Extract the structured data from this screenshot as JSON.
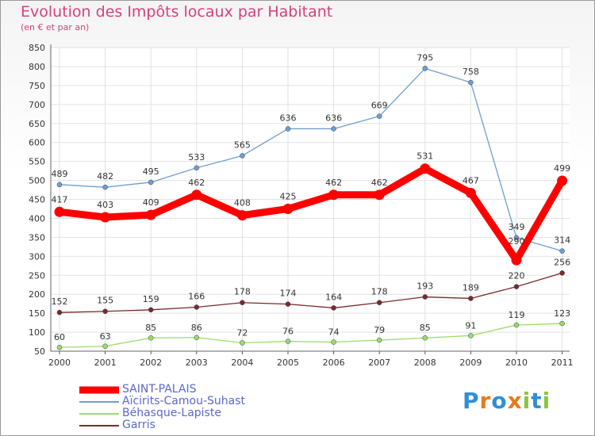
{
  "chart_data": {
    "type": "line",
    "title": "Evolution des Impôts locaux par Habitant",
    "subtitle": "(en € et par an)",
    "x": [
      "2000",
      "2001",
      "2002",
      "2003",
      "2004",
      "2005",
      "2006",
      "2007",
      "2008",
      "2009",
      "2010",
      "2011"
    ],
    "ylim": [
      50,
      850
    ],
    "yticks": [
      50,
      100,
      150,
      200,
      250,
      300,
      350,
      400,
      450,
      500,
      550,
      600,
      650,
      700,
      750,
      800,
      850
    ],
    "grid": true,
    "legend_placement": "bottom-left",
    "series": [
      {
        "name": "SAINT-PALAIS",
        "color": "#ff0000",
        "values": [
          417,
          403,
          409,
          462,
          408,
          425,
          462,
          462,
          531,
          467,
          290,
          499
        ]
      },
      {
        "name": "Aïcirits-Camou-Suhast",
        "color": "#6f9fcf",
        "values": [
          489,
          482,
          495,
          533,
          565,
          636,
          636,
          669,
          795,
          758,
          349,
          314
        ]
      },
      {
        "name": "Béhasque-Lapiste",
        "color": "#99dd66",
        "values": [
          60,
          63,
          85,
          86,
          72,
          76,
          74,
          79,
          85,
          91,
          119,
          123
        ]
      },
      {
        "name": "Garris",
        "color": "#7a2a2a",
        "values": [
          152,
          155,
          159,
          166,
          178,
          174,
          164,
          178,
          193,
          189,
          220,
          256
        ]
      }
    ]
  },
  "brand": {
    "letters": [
      "P",
      "r",
      "o",
      "x",
      "i",
      "t",
      "i"
    ],
    "colors": [
      "#2f8fd6",
      "#e97a1c",
      "#2f8fd6",
      "#e97a1c",
      "#8bc53f",
      "#2f8fd6",
      "#8bc53f"
    ]
  }
}
